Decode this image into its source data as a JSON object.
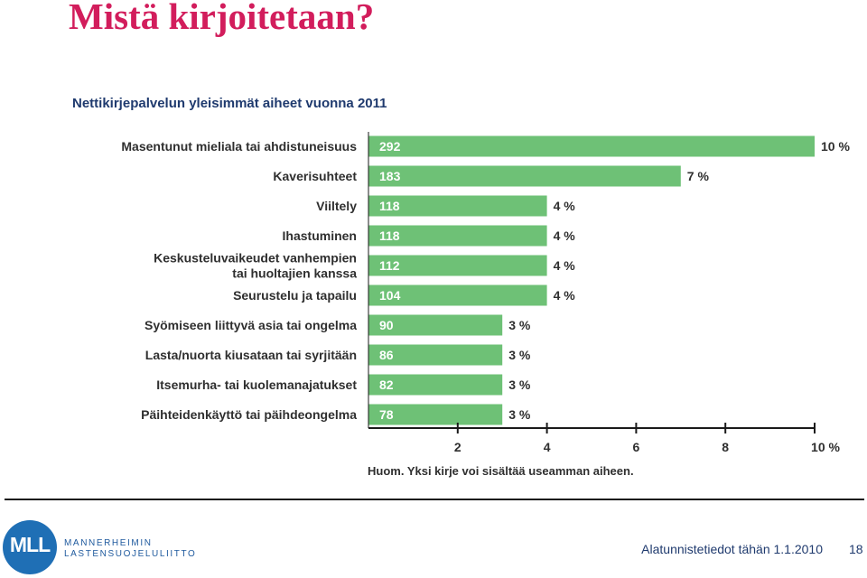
{
  "slide": {
    "title": "Mistä kirjoitetaan?",
    "footer": "Alatunnistetiedot tähän 1.1.2010",
    "page_number": "18",
    "logo": {
      "mark": "MLL",
      "line1": "MANNERHEIMIN",
      "line2": "LASTENSUOJELULIITTO"
    }
  },
  "colors": {
    "title": "#d21d5c",
    "bar": "#6ec176",
    "chart_text": "#2f2f2f",
    "logo_blue": "#1f6fb5"
  },
  "chart_data": {
    "type": "bar",
    "orientation": "horizontal",
    "title": "Nettikirjepalvelun yleisimmät aiheet vuonna 2011",
    "note": "Huom. Yksi kirje voi sisältää useamman aiheen.",
    "categories": [
      [
        "Masentunut mieliala tai ahdistuneisuus"
      ],
      [
        "Kaverisuhteet"
      ],
      [
        "Viiltely"
      ],
      [
        "Ihastuminen"
      ],
      [
        "Keskusteluvaikeudet vanhempien",
        "tai huoltajien kanssa"
      ],
      [
        "Seurustelu ja tapailu"
      ],
      [
        "Syömiseen liittyvä asia tai ongelma"
      ],
      [
        "Lasta/nuorta kiusataan tai syrjitään"
      ],
      [
        "Itsemurha- tai kuolemanajatukset"
      ],
      [
        "Päihteidenkäyttö tai päihdeongelma"
      ]
    ],
    "values": [
      10,
      7,
      4,
      4,
      4,
      4,
      3,
      3,
      3,
      3
    ],
    "counts": [
      "292",
      "183",
      "118",
      "118",
      "112",
      "104",
      "90",
      "86",
      "82",
      "78"
    ],
    "value_labels": [
      "10 %",
      "7 %",
      "4 %",
      "4 %",
      "4 %",
      "4 %",
      "3 %",
      "3 %",
      "3 %",
      "3 %"
    ],
    "xlim": [
      0,
      10
    ],
    "xticks": [
      2,
      4,
      6,
      8,
      10
    ],
    "xtick_labels": [
      "2",
      "4",
      "6",
      "8",
      "10 %"
    ],
    "grid": false,
    "legend": "none"
  }
}
